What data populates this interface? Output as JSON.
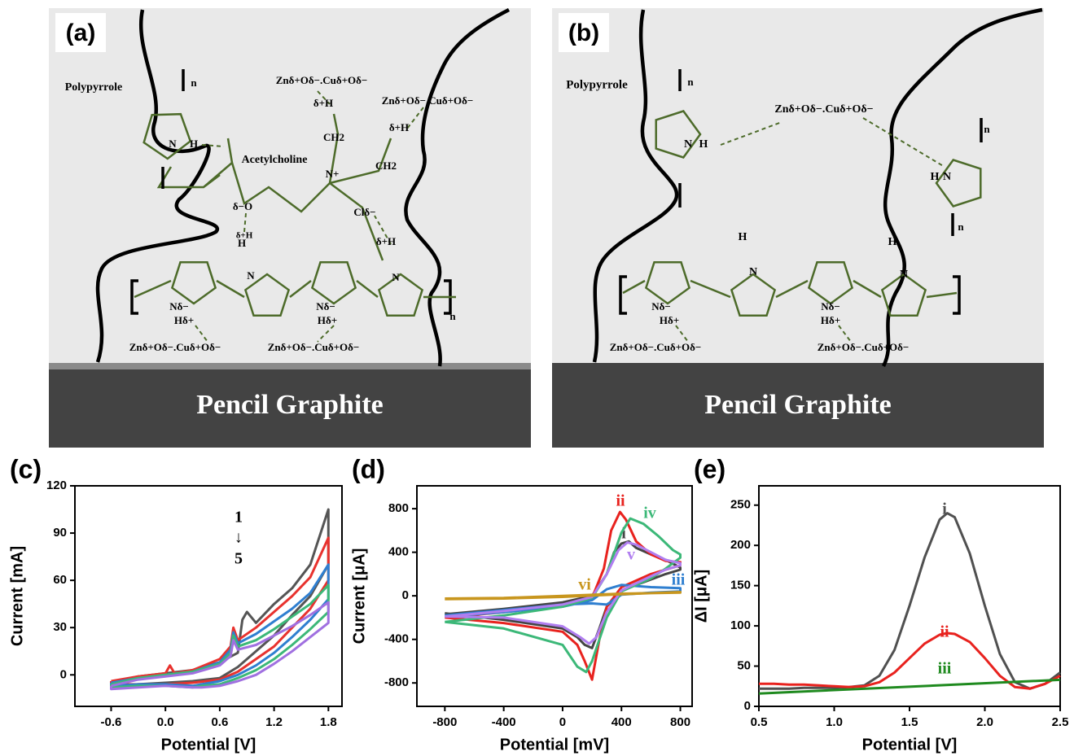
{
  "schematics": [
    {
      "label": "(a)",
      "substrate": "Pencil Graphite",
      "texts": [
        "Polypyrrole",
        "Acetylcholine",
        "Znδ+Oδ−.Cuδ+Oδ−",
        "Znδ+Oδ−.Cuδ+Oδ−",
        "Znδ+Oδ−.Cuδ+Oδ−",
        "Znδ+Oδ−.Cuδ+Oδ−",
        "n",
        "n",
        "N",
        "H",
        "H",
        "N",
        "N",
        "Nδ−",
        "Hδ+",
        "Nδ−",
        "Hδ+",
        "CH2",
        "CH2",
        "N+",
        "Clδ−",
        "δ−O",
        "δ+H",
        "δ+H",
        "δ+H",
        "δ+H"
      ]
    },
    {
      "label": "(b)",
      "substrate": "Pencil Graphite",
      "texts": [
        "Polypyrrole",
        "Znδ+Oδ−.Cuδ+Oδ−",
        "Znδ+Oδ−.Cuδ+Oδ−",
        "Znδ+Oδ−.Cuδ+Oδ−",
        "n",
        "n",
        "n",
        "N",
        "H",
        "N",
        "H",
        "H",
        "N",
        "H",
        "N",
        "Nδ−",
        "Hδ+",
        "Nδ−",
        "Hδ+"
      ]
    }
  ],
  "chart_data": [
    {
      "type": "line",
      "panel_label": "(c)",
      "xlabel": "Potential [V]",
      "ylabel": "Current [mA]",
      "xlim": [
        -1.0,
        1.95
      ],
      "ylim": [
        -20,
        120
      ],
      "xticks": [
        -0.6,
        {
          "value": 0,
          "label": "0.0"
        },
        0.6,
        1.2,
        1.8
      ],
      "yticks": [
        0,
        30,
        60,
        90,
        120
      ],
      "annotations": [
        "1",
        "↓",
        "5"
      ],
      "series": [
        {
          "color": "#555555",
          "x": [
            -0.6,
            -0.3,
            0,
            0.3,
            0.6,
            0.8,
            0.85,
            0.9,
            1.0,
            1.2,
            1.4,
            1.6,
            1.8,
            1.8,
            1.6,
            1.4,
            1.2,
            1.0,
            0.8,
            0.6,
            0.3,
            0,
            -0.3,
            -0.6,
            -0.6
          ],
          "values": [
            -5,
            -1,
            1,
            3,
            8,
            14,
            35,
            40,
            33,
            45,
            55,
            70,
            105,
            70,
            50,
            38,
            25,
            15,
            5,
            -2,
            -4,
            -5,
            -6,
            -7,
            -5
          ]
        },
        {
          "color": "#e8322e",
          "x": [
            -0.6,
            -0.3,
            0,
            0.05,
            0.1,
            0.3,
            0.6,
            0.72,
            0.75,
            0.8,
            1.0,
            1.2,
            1.4,
            1.6,
            1.8,
            1.8,
            1.6,
            1.4,
            1.2,
            1.0,
            0.8,
            0.6,
            0.3,
            0,
            -0.3,
            -0.6,
            -0.6
          ],
          "values": [
            -4,
            -1,
            1,
            6,
            1,
            3,
            10,
            18,
            30,
            22,
            30,
            40,
            50,
            62,
            87,
            60,
            42,
            30,
            18,
            10,
            2,
            -3,
            -5,
            -6,
            -6,
            -6,
            -4
          ]
        },
        {
          "color": "#2f7fd0",
          "x": [
            -0.6,
            -0.3,
            0,
            0.3,
            0.6,
            0.72,
            0.75,
            0.8,
            1.0,
            1.2,
            1.4,
            1.6,
            1.8,
            1.8,
            1.6,
            1.4,
            1.2,
            1.0,
            0.8,
            0.6,
            0.4,
            0.3,
            0,
            -0.3,
            -0.6,
            -0.6
          ],
          "values": [
            -5,
            -2,
            0,
            2,
            8,
            16,
            27,
            20,
            26,
            34,
            42,
            52,
            70,
            48,
            35,
            24,
            14,
            6,
            0,
            -4,
            -6,
            -7,
            -6,
            -6,
            -7,
            -5
          ]
        },
        {
          "color": "#3cb878",
          "x": [
            -0.6,
            -0.3,
            0,
            0.3,
            0.6,
            0.72,
            0.75,
            0.8,
            1.0,
            1.2,
            1.4,
            1.6,
            1.8,
            1.8,
            1.6,
            1.4,
            1.2,
            1.0,
            0.8,
            0.6,
            0.4,
            0.3,
            0,
            -0.3,
            -0.6,
            -0.6
          ],
          "values": [
            -6,
            -2,
            0,
            2,
            7,
            14,
            25,
            18,
            22,
            29,
            37,
            45,
            57,
            40,
            29,
            19,
            10,
            3,
            -2,
            -6,
            -7,
            -8,
            -7,
            -7,
            -8,
            -6
          ]
        },
        {
          "color": "#a070e0",
          "x": [
            -0.6,
            -0.3,
            0,
            0.3,
            0.6,
            0.72,
            0.75,
            0.8,
            1.0,
            1.2,
            1.4,
            1.6,
            1.8,
            1.8,
            1.6,
            1.4,
            1.2,
            1.0,
            0.8,
            0.6,
            0.4,
            0.3,
            0,
            -0.3,
            -0.6,
            -0.6
          ],
          "values": [
            -7,
            -3,
            -1,
            1,
            6,
            12,
            22,
            16,
            19,
            25,
            31,
            38,
            46,
            33,
            24,
            15,
            7,
            0,
            -4,
            -7,
            -8,
            -8,
            -7,
            -8,
            -9,
            -7
          ]
        }
      ]
    },
    {
      "type": "line",
      "panel_label": "(d)",
      "xlabel": "Potential [mV]",
      "ylabel": "Current [μA]",
      "xlim": [
        -990,
        880
      ],
      "ylim": [
        -1015,
        1010
      ],
      "xticks": [
        -800,
        -400,
        0,
        400,
        800
      ],
      "yticks": [
        -800,
        -400,
        0,
        400,
        800
      ],
      "series": [
        {
          "name": "i",
          "color": "#444444",
          "x": [
            -800,
            -400,
            0,
            200,
            300,
            350,
            400,
            450,
            500,
            600,
            700,
            800,
            800,
            700,
            600,
            400,
            300,
            250,
            200,
            150,
            100,
            0,
            -400,
            -800
          ],
          "values": [
            -170,
            -120,
            -60,
            0,
            200,
            400,
            480,
            500,
            440,
            380,
            330,
            260,
            240,
            200,
            150,
            50,
            -100,
            -300,
            -480,
            -450,
            -380,
            -300,
            -220,
            -160
          ]
        },
        {
          "name": "ii",
          "color": "#e8221e",
          "x": [
            -800,
            -400,
            0,
            200,
            280,
            330,
            390,
            430,
            500,
            600,
            700,
            800,
            800,
            700,
            600,
            400,
            300,
            250,
            200,
            150,
            100,
            0,
            -400,
            -800
          ],
          "values": [
            -200,
            -150,
            -90,
            -20,
            250,
            600,
            770,
            700,
            500,
            380,
            320,
            310,
            280,
            240,
            200,
            80,
            -100,
            -400,
            -770,
            -600,
            -450,
            -330,
            -250,
            -200
          ]
        },
        {
          "name": "iii",
          "color": "#2f7fd0",
          "x": [
            -800,
            -400,
            0,
            200,
            300,
            400,
            500,
            600,
            800,
            800,
            600,
            400,
            300,
            200,
            0,
            -400,
            -800
          ],
          "values": [
            -190,
            -150,
            -100,
            -40,
            60,
            100,
            90,
            80,
            70,
            40,
            30,
            10,
            -80,
            -70,
            -80,
            -130,
            -180
          ]
        },
        {
          "name": "iv",
          "color": "#3cb878",
          "x": [
            -800,
            -400,
            0,
            200,
            300,
            400,
            460,
            550,
            650,
            750,
            800,
            800,
            700,
            600,
            400,
            300,
            200,
            160,
            100,
            0,
            -400,
            -800
          ],
          "values": [
            -240,
            -180,
            -100,
            -20,
            200,
            580,
            710,
            660,
            550,
            420,
            380,
            350,
            250,
            160,
            40,
            -200,
            -600,
            -700,
            -650,
            -450,
            -300,
            -240
          ]
        },
        {
          "name": "v",
          "color": "#b07ef0",
          "x": [
            -800,
            -400,
            0,
            200,
            300,
            380,
            440,
            500,
            600,
            700,
            800,
            800,
            700,
            600,
            400,
            300,
            230,
            180,
            120,
            0,
            -400,
            -800
          ],
          "values": [
            -190,
            -140,
            -80,
            -10,
            200,
            420,
            490,
            470,
            400,
            330,
            300,
            280,
            240,
            180,
            50,
            -150,
            -380,
            -440,
            -380,
            -280,
            -200,
            -190
          ]
        },
        {
          "name": "vi",
          "color": "#c8961e",
          "x": [
            -800,
            -400,
            0,
            400,
            800,
            800,
            400,
            0,
            -400,
            -800
          ],
          "values": [
            -30,
            -25,
            -10,
            15,
            35,
            30,
            20,
            0,
            -20,
            -25
          ]
        }
      ]
    },
    {
      "type": "line",
      "panel_label": "(e)",
      "xlabel": "Potential [V]",
      "ylabel": "ΔI [μA]",
      "xlim": [
        0.5,
        2.5
      ],
      "ylim": [
        0,
        274
      ],
      "xticks": [
        0.5,
        {
          "value": 1,
          "label": "1.0"
        },
        1.5,
        {
          "value": 2,
          "label": "2.0"
        },
        2.5
      ],
      "yticks": [
        0,
        50,
        100,
        150,
        200,
        250
      ],
      "series": [
        {
          "name": "i",
          "color": "#505050",
          "x": [
            0.5,
            0.6,
            0.7,
            0.8,
            0.9,
            1.0,
            1.1,
            1.2,
            1.3,
            1.4,
            1.5,
            1.6,
            1.7,
            1.75,
            1.8,
            1.9,
            2.0,
            2.1,
            2.2,
            2.3,
            2.4,
            2.5
          ],
          "values": [
            22,
            22,
            22,
            23,
            23,
            23,
            24,
            26,
            38,
            70,
            125,
            185,
            232,
            240,
            235,
            190,
            125,
            65,
            30,
            22,
            28,
            42
          ]
        },
        {
          "name": "ii",
          "color": "#e8221e",
          "x": [
            0.5,
            0.6,
            0.7,
            0.8,
            0.9,
            1.0,
            1.1,
            1.2,
            1.3,
            1.4,
            1.5,
            1.6,
            1.7,
            1.75,
            1.8,
            1.9,
            2.0,
            2.1,
            2.2,
            2.3,
            2.4,
            2.5
          ],
          "values": [
            28,
            28,
            27,
            27,
            26,
            25,
            24,
            25,
            30,
            42,
            60,
            78,
            89,
            91,
            90,
            80,
            60,
            38,
            24,
            22,
            28,
            38
          ]
        },
        {
          "name": "iii",
          "color": "#1f8a1f",
          "x": [
            0.5,
            2.5
          ],
          "values": [
            16,
            33
          ]
        }
      ]
    }
  ]
}
